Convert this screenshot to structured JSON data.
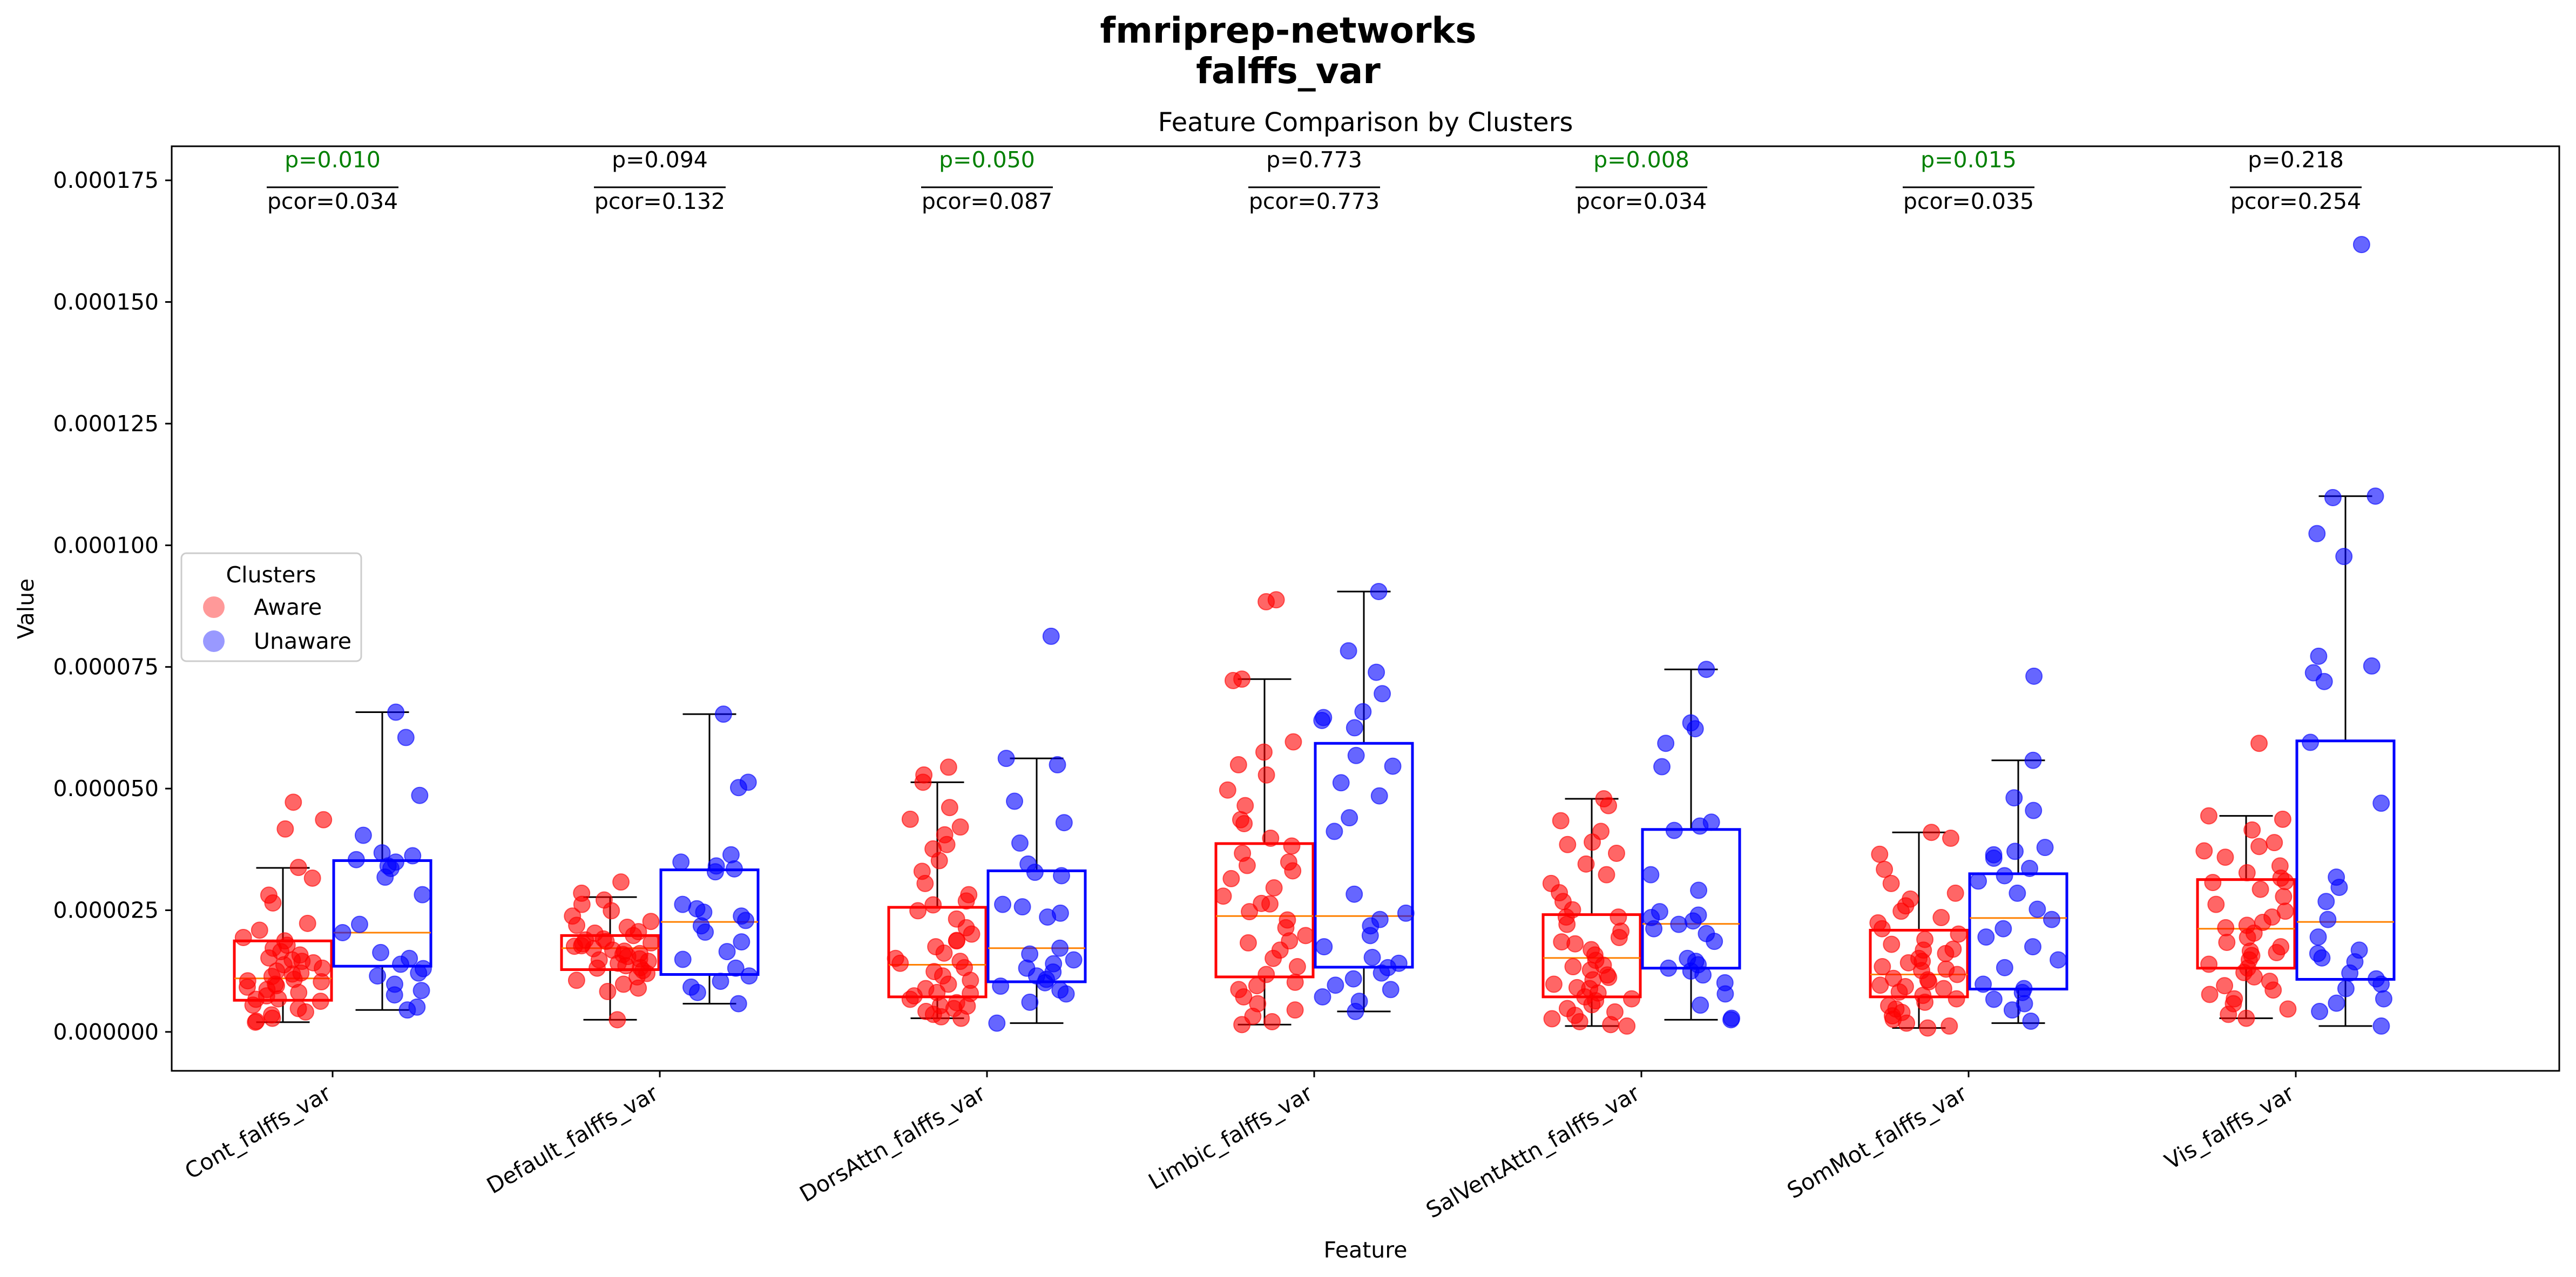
{
  "chart_data": {
    "type": "box",
    "suptitle_line1": "fmriprep-networks",
    "suptitle_line2": "falffs_var",
    "title": "Feature Comparison by Clusters",
    "xlabel": "Feature",
    "ylabel": "Value",
    "ylim": [
      -8e-06,
      0.000182
    ],
    "yticks": [
      0.0,
      2.5e-05,
      5e-05,
      7.5e-05,
      0.0001,
      0.000125,
      0.00015,
      0.000175
    ],
    "ytick_labels": [
      "0.000000",
      "0.000025",
      "0.000050",
      "0.000075",
      "0.000100",
      "0.000125",
      "0.000150",
      "0.000175"
    ],
    "categories": [
      "Cont_falffs_var",
      "Default_falffs_var",
      "DorsAttn_falffs_var",
      "Limbic_falffs_var",
      "SalVentAttn_falffs_var",
      "SomMot_falffs_var",
      "Vis_falffs_var"
    ],
    "legend": {
      "title": "Clusters",
      "placement": "center-left",
      "entries": [
        {
          "name": "Aware",
          "color": "#ff9999"
        },
        {
          "name": "Unaware",
          "color": "#9999ff"
        }
      ]
    },
    "colors": {
      "aware": "#ff0000",
      "unaware": "#0000ff",
      "median": "#ff8000",
      "significant": "#008000",
      "nonsignificant": "#000000"
    },
    "stats": [
      {
        "p": "p=0.010",
        "pcor": "pcor=0.034",
        "significant": true
      },
      {
        "p": "p=0.094",
        "pcor": "pcor=0.132",
        "significant": false
      },
      {
        "p": "p=0.050",
        "pcor": "pcor=0.087",
        "significant": true
      },
      {
        "p": "p=0.773",
        "pcor": "pcor=0.773",
        "significant": false
      },
      {
        "p": "p=0.008",
        "pcor": "pcor=0.034",
        "significant": true
      },
      {
        "p": "p=0.015",
        "pcor": "pcor=0.035",
        "significant": true
      },
      {
        "p": "p=0.218",
        "pcor": "pcor=0.254",
        "significant": false
      }
    ],
    "series": [
      {
        "name": "Aware",
        "boxes": [
          {
            "whislo": 2e-06,
            "q1": 6.5e-06,
            "med": 1.1e-05,
            "q3": 1.87e-05,
            "whishi": 3.37e-05,
            "points": [
              4.72e-05,
              4.36e-05,
              4.17e-05,
              3.38e-05,
              3.16e-05,
              2.81e-05,
              2.65e-05,
              2.23e-05,
              2.09e-05,
              1.94e-05,
              1.87e-05,
              1.78e-05,
              1.65e-05,
              1.58e-05,
              1.52e-05,
              1.48e-05,
              1.42e-05,
              1.38e-05,
              1.31e-05,
              1.25e-05,
              1.19e-05,
              1.14e-05,
              1.08e-05,
              1.03e-05,
              9.8e-06,
              9.2e-06,
              8.7e-06,
              8.1e-06,
              7.4e-06,
              6.8e-06,
              6.3e-06,
              5.5e-06,
              4.8e-06,
              4.1e-06,
              3.5e-06,
              2.8e-06,
              2.2e-06,
              2e-06,
              9.5e-06,
              1.05e-05,
              1.45e-05,
              1.21e-05,
              6.7e-06,
              1.72e-05
            ]
          },
          {
            "whislo": 2.5e-06,
            "q1": 1.28e-05,
            "med": 1.72e-05,
            "q3": 1.98e-05,
            "whishi": 2.77e-05,
            "points": [
              3.08e-05,
              2.85e-05,
              2.71e-05,
              2.62e-05,
              2.49e-05,
              2.38e-05,
              2.27e-05,
              2.15e-05,
              2.06e-05,
              1.98e-05,
              1.91e-05,
              1.86e-05,
              1.81e-05,
              1.76e-05,
              1.71e-05,
              1.66e-05,
              1.61e-05,
              1.55e-05,
              1.5e-05,
              1.45e-05,
              1.41e-05,
              1.36e-05,
              1.31e-05,
              1.26e-05,
              1.2e-05,
              1.13e-05,
              1.06e-05,
              9.8e-06,
              9e-06,
              8.3e-06,
              2.5e-06,
              1.77e-05,
              1.89e-05,
              1.59e-05,
              1.68e-05,
              1.48e-05,
              2.03e-05,
              1.32e-05,
              2.19e-05,
              1.83e-05
            ]
          },
          {
            "whislo": 2.8e-06,
            "q1": 7.2e-06,
            "med": 1.38e-05,
            "q3": 2.56e-05,
            "whishi": 5.13e-05,
            "points": [
              5.44e-05,
              5.28e-05,
              5.13e-05,
              4.61e-05,
              4.37e-05,
              4.21e-05,
              4.05e-05,
              3.85e-05,
              3.76e-05,
              3.52e-05,
              3.3e-05,
              3.05e-05,
              2.82e-05,
              2.61e-05,
              2.49e-05,
              2.32e-05,
              2.14e-05,
              2.01e-05,
              1.88e-05,
              1.75e-05,
              1.62e-05,
              1.51e-05,
              1.41e-05,
              1.32e-05,
              1.24e-05,
              1.15e-05,
              1.06e-05,
              9.8e-06,
              8.9e-06,
              8.1e-06,
              7.4e-06,
              6.7e-06,
              6e-06,
              5.4e-06,
              4.8e-06,
              4.2e-06,
              3.6e-06,
              3.1e-06,
              2.8e-06,
              7.9e-06,
              1.45e-05,
              2.69e-05,
              1.87e-05,
              5.3e-06
            ]
          },
          {
            "whislo": 1.5e-06,
            "q1": 1.13e-05,
            "med": 2.38e-05,
            "q3": 3.87e-05,
            "whishi": 7.25e-05,
            "points": [
              8.88e-05,
              8.84e-05,
              7.25e-05,
              7.22e-05,
              5.96e-05,
              5.75e-05,
              5.49e-05,
              5.28e-05,
              4.97e-05,
              4.65e-05,
              4.36e-05,
              4.28e-05,
              3.98e-05,
              3.82e-05,
              3.67e-05,
              3.49e-05,
              3.31e-05,
              3.15e-05,
              2.96e-05,
              2.79e-05,
              2.63e-05,
              2.47e-05,
              2.3e-05,
              2.14e-05,
              1.98e-05,
              1.83e-05,
              1.68e-05,
              1.51e-05,
              1.34e-05,
              1.18e-05,
              1.02e-05,
              8.7e-06,
              7.2e-06,
              5.8e-06,
              4.5e-06,
              3.2e-06,
              2.1e-06,
              1.5e-06,
              2.64e-05,
              1.87e-05,
              3.42e-05,
              9.5e-06
            ]
          },
          {
            "whislo": 1.2e-06,
            "q1": 7.2e-06,
            "med": 1.52e-05,
            "q3": 2.41e-05,
            "whishi": 4.79e-05,
            "points": [
              4.79e-05,
              4.65e-05,
              4.34e-05,
              4.12e-05,
              3.9e-05,
              3.85e-05,
              3.67e-05,
              3.45e-05,
              3.23e-05,
              3.05e-05,
              2.86e-05,
              2.68e-05,
              2.51e-05,
              2.36e-05,
              2.21e-05,
              2.07e-05,
              1.94e-05,
              1.81e-05,
              1.69e-05,
              1.58e-05,
              1.47e-05,
              1.37e-05,
              1.27e-05,
              1.17e-05,
              1.07e-05,
              9.8e-06,
              8.9e-06,
              8e-06,
              7.2e-06,
              6.4e-06,
              5.6e-06,
              4.8e-06,
              4.1e-06,
              3.4e-06,
              2.7e-06,
              2.1e-06,
              1.5e-06,
              1.2e-06,
              1.85e-05,
              1.12e-05,
              2.36e-05,
              6.8e-06,
              1.34e-05,
              9.1e-06
            ]
          },
          {
            "whislo": 8e-07,
            "q1": 7.2e-06,
            "med": 1.18e-05,
            "q3": 2.09e-05,
            "whishi": 4.1e-05,
            "points": [
              4.1e-05,
              3.98e-05,
              3.65e-05,
              3.34e-05,
              3.05e-05,
              2.85e-05,
              2.73e-05,
              2.59e-05,
              2.48e-05,
              2.35e-05,
              2.24e-05,
              2.12e-05,
              2.01e-05,
              1.9e-05,
              1.8e-05,
              1.7e-05,
              1.61e-05,
              1.51e-05,
              1.42e-05,
              1.34e-05,
              1.26e-05,
              1.18e-05,
              1.1e-05,
              1.03e-05,
              9.6e-06,
              8.9e-06,
              8.2e-06,
              7.5e-06,
              6.8e-06,
              6.1e-06,
              5.4e-06,
              4.7e-06,
              4e-06,
              3.3e-06,
              2.6e-06,
              1.8e-06,
              1.2e-06,
              8e-07,
              1.29e-05,
              1.07e-05,
              9.3e-06,
              1.45e-05,
              1.68e-05
            ]
          },
          {
            "whislo": 2.8e-06,
            "q1": 1.31e-05,
            "med": 2.12e-05,
            "q3": 3.13e-05,
            "whishi": 4.44e-05,
            "points": [
              5.93e-05,
              4.44e-05,
              4.37e-05,
              4.15e-05,
              3.89e-05,
              3.81e-05,
              3.72e-05,
              3.59e-05,
              3.41e-05,
              3.27e-05,
              3.16e-05,
              3.09e-05,
              2.93e-05,
              2.78e-05,
              2.62e-05,
              2.48e-05,
              2.36e-05,
              2.25e-05,
              2.14e-05,
              2.03e-05,
              1.94e-05,
              1.84e-05,
              1.75e-05,
              1.66e-05,
              1.57e-05,
              1.48e-05,
              1.39e-05,
              1.31e-05,
              1.22e-05,
              1.13e-05,
              1.04e-05,
              9.5e-06,
              8.6e-06,
              7.7e-06,
              6.8e-06,
              5.8e-06,
              4.7e-06,
              3.6e-06,
              2.8e-06,
              2.19e-05,
              1.63e-05,
              3.07e-05
            ]
          }
        ]
      },
      {
        "name": "Unaware",
        "boxes": [
          {
            "whislo": 4.5e-06,
            "q1": 1.35e-05,
            "med": 2.04e-05,
            "q3": 3.52e-05,
            "whishi": 6.57e-05,
            "points": [
              6.57e-05,
              6.05e-05,
              4.86e-05,
              4.04e-05,
              3.68e-05,
              3.62e-05,
              3.54e-05,
              3.49e-05,
              3.41e-05,
              3.36e-05,
              3.18e-05,
              2.82e-05,
              2.21e-05,
              2.04e-05,
              1.63e-05,
              1.51e-05,
              1.39e-05,
              1.3e-05,
              1.21e-05,
              1.15e-05,
              9.8e-06,
              8.5e-06,
              7.6e-06,
              5.1e-06,
              4.5e-06
            ]
          },
          {
            "whislo": 5.8e-06,
            "q1": 1.18e-05,
            "med": 2.26e-05,
            "q3": 3.33e-05,
            "whishi": 6.53e-05,
            "points": [
              6.53e-05,
              5.13e-05,
              5.02e-05,
              3.64e-05,
              3.49e-05,
              3.41e-05,
              3.35e-05,
              3.29e-05,
              2.62e-05,
              2.53e-05,
              2.46e-05,
              2.38e-05,
              2.29e-05,
              2.18e-05,
              2.05e-05,
              1.85e-05,
              1.65e-05,
              1.49e-05,
              1.31e-05,
              1.15e-05,
              1.04e-05,
              9.2e-06,
              8.1e-06,
              5.8e-06
            ]
          },
          {
            "whislo": 1.8e-06,
            "q1": 1.03e-05,
            "med": 1.72e-05,
            "q3": 3.31e-05,
            "whishi": 5.62e-05,
            "points": [
              8.13e-05,
              5.62e-05,
              5.49e-05,
              4.74e-05,
              4.3e-05,
              3.88e-05,
              3.45e-05,
              3.28e-05,
              3.21e-05,
              2.62e-05,
              2.57e-05,
              2.44e-05,
              2.36e-05,
              1.72e-05,
              1.6e-05,
              1.48e-05,
              1.4e-05,
              1.31e-05,
              1.23e-05,
              1.15e-05,
              1.08e-05,
              1.01e-05,
              9.4e-06,
              8.6e-06,
              7.8e-06,
              6.1e-06,
              1.8e-06
            ]
          },
          {
            "whislo": 4.2e-06,
            "q1": 1.33e-05,
            "med": 2.38e-05,
            "q3": 5.93e-05,
            "whishi": 9.05e-05,
            "points": [
              9.05e-05,
              7.83e-05,
              7.39e-05,
              6.95e-05,
              6.58e-05,
              6.46e-05,
              6.4e-05,
              6.25e-05,
              5.68e-05,
              5.46e-05,
              5.12e-05,
              4.85e-05,
              4.4e-05,
              4.12e-05,
              2.83e-05,
              2.44e-05,
              2.31e-05,
              2.18e-05,
              1.98e-05,
              1.75e-05,
              1.53e-05,
              1.41e-05,
              1.32e-05,
              1.21e-05,
              1.09e-05,
              9.6e-06,
              8.7e-06,
              7.2e-06,
              6.3e-06,
              4.2e-06
            ]
          },
          {
            "whislo": 2.5e-06,
            "q1": 1.31e-05,
            "med": 2.22e-05,
            "q3": 4.16e-05,
            "whishi": 7.45e-05,
            "points": [
              7.45e-05,
              6.35e-05,
              6.23e-05,
              5.93e-05,
              5.45e-05,
              4.31e-05,
              4.23e-05,
              4.14e-05,
              3.23e-05,
              2.91e-05,
              2.47e-05,
              2.4e-05,
              2.35e-05,
              2.28e-05,
              2.21e-05,
              2.12e-05,
              2.02e-05,
              1.86e-05,
              1.51e-05,
              1.45e-05,
              1.38e-05,
              1.31e-05,
              1.25e-05,
              1.17e-05,
              1.01e-05,
              7.8e-06,
              5.5e-06,
              2.8e-06,
              2.5e-06
            ]
          },
          {
            "whislo": 1.8e-06,
            "q1": 8.8e-06,
            "med": 2.34e-05,
            "q3": 3.25e-05,
            "whishi": 5.58e-05,
            "points": [
              7.31e-05,
              5.58e-05,
              4.81e-05,
              4.55e-05,
              3.79e-05,
              3.71e-05,
              3.64e-05,
              3.57e-05,
              3.36e-05,
              3.21e-05,
              3.1e-05,
              2.85e-05,
              2.52e-05,
              2.31e-05,
              2.12e-05,
              1.95e-05,
              1.75e-05,
              1.48e-05,
              1.32e-05,
              9.8e-06,
              8.9e-06,
              8.1e-06,
              6.7e-06,
              5.8e-06,
              4.5e-06,
              2.2e-06
            ]
          },
          {
            "whislo": 1.2e-06,
            "q1": 1.08e-05,
            "med": 2.26e-05,
            "q3": 5.98e-05,
            "whishi": 0.0001101,
            "points": [
              0.0001618,
              0.0001101,
              0.0001098,
              0.0001024,
              9.77e-05,
              7.72e-05,
              7.52e-05,
              7.38e-05,
              7.2e-05,
              5.95e-05,
              4.7e-05,
              3.18e-05,
              2.97e-05,
              2.68e-05,
              2.31e-05,
              1.95e-05,
              1.68e-05,
              1.61e-05,
              1.52e-05,
              1.44e-05,
              1.21e-05,
              1.09e-05,
              9.8e-06,
              8.9e-06,
              6.8e-06,
              5.9e-06,
              4.2e-06,
              1.2e-06
            ]
          }
        ]
      }
    ]
  }
}
